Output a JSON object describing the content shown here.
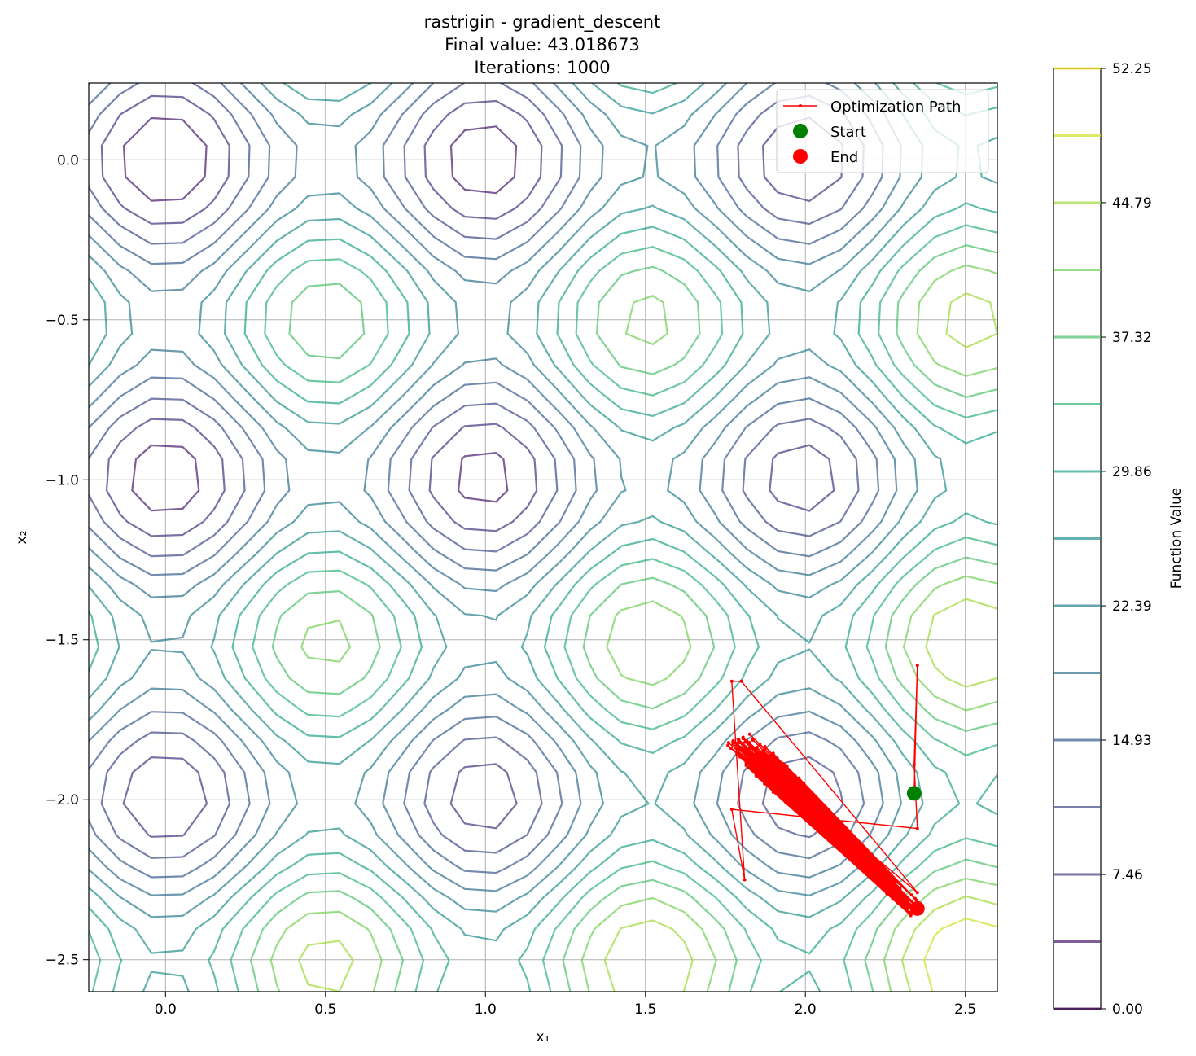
{
  "chart_data": {
    "type": "contour",
    "title_lines": [
      "rastrigin - gradient_descent",
      "Final value: 43.018673",
      "Iterations: 1000"
    ],
    "xlabel": "x₁",
    "ylabel": "x₂",
    "xlim": [
      -0.24,
      2.6
    ],
    "ylim": [
      -2.6,
      0.24
    ],
    "x_ticks": [
      0.0,
      0.5,
      1.0,
      1.5,
      2.0,
      2.5
    ],
    "x_tick_labels": [
      "0.0",
      "0.5",
      "1.0",
      "1.5",
      "2.0",
      "2.5"
    ],
    "y_ticks": [
      0.0,
      -0.5,
      -1.0,
      -1.5,
      -2.0,
      -2.5
    ],
    "y_tick_labels": [
      "0.0",
      "−0.5",
      "−1.0",
      "−1.5",
      "−2.0",
      "−2.5"
    ],
    "grid": true,
    "legend": {
      "placement": "upper right",
      "entries": [
        {
          "label": "Optimization Path",
          "marker": "line",
          "color": "#ff0000"
        },
        {
          "label": "Start",
          "marker": "circle",
          "color": "#008000"
        },
        {
          "label": "End",
          "marker": "circle",
          "color": "#ff0000"
        }
      ]
    },
    "function": "rastrigin",
    "contour_levels": 15,
    "contour_alpha": 0.7,
    "colormap": "viridis",
    "path": {
      "start": [
        2.34,
        -1.98
      ],
      "end": [
        2.35,
        -2.34
      ],
      "notable_points": [
        [
          2.35,
          -1.58
        ],
        [
          2.34,
          -1.89
        ],
        [
          2.35,
          -2.09
        ],
        [
          1.77,
          -2.03
        ],
        [
          1.81,
          -2.25
        ],
        [
          1.77,
          -1.63
        ],
        [
          1.8,
          -1.63
        ],
        [
          2.35,
          -2.29
        ]
      ],
      "cluster_band": {
        "from": [
          1.78,
          -1.8
        ],
        "to": [
          2.35,
          -2.35
        ],
        "width": 0.09
      }
    },
    "colorbar": {
      "label": "Function Value",
      "min": 0.0,
      "max": 52.25,
      "ticks": [
        0.0,
        7.46,
        14.93,
        22.39,
        29.86,
        37.32,
        44.79,
        52.25
      ],
      "tick_labels": [
        "0.00",
        "7.46",
        "14.93",
        "22.39",
        "29.86",
        "37.32",
        "44.79",
        "52.25"
      ]
    }
  }
}
